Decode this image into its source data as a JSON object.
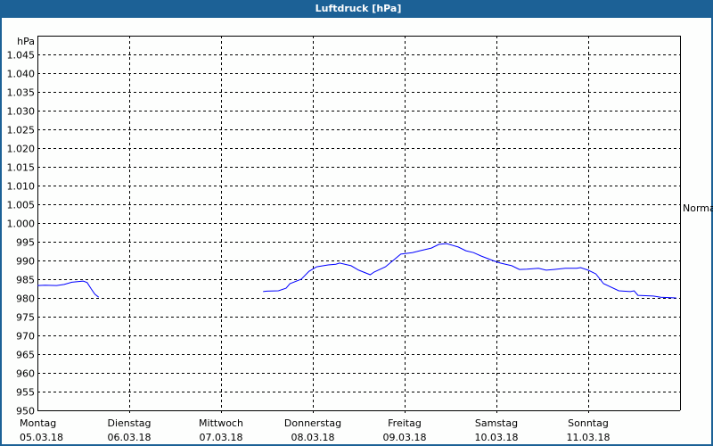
{
  "title": "Luftdruck [hPa]",
  "colors": {
    "titlebar": "#1c6196",
    "line": "#0000ff",
    "grid": "#000000"
  },
  "chart_data": {
    "type": "line",
    "title": "Luftdruck [hPa]",
    "ylabel": "hPa",
    "ylim": [
      950,
      1050
    ],
    "yticks": [
      950,
      955,
      960,
      965,
      970,
      975,
      980,
      985,
      990,
      995,
      1000,
      1005,
      1010,
      1015,
      1020,
      1025,
      1030,
      1035,
      1040,
      1045
    ],
    "ytick_labels": [
      "950",
      "955",
      "960",
      "965",
      "970",
      "975",
      "980",
      "985",
      "990",
      "995",
      "1.000",
      "1.005",
      "1.010",
      "1.015",
      "1.020",
      "1.025",
      "1.030",
      "1.035",
      "1.040",
      "1.045"
    ],
    "xlim": [
      "05.03.18 00:00",
      "12.03.18 00:00"
    ],
    "xticks": [
      {
        "day": "Montag",
        "date": "05.03.18"
      },
      {
        "day": "Dienstag",
        "date": "06.03.18"
      },
      {
        "day": "Mittwoch",
        "date": "07.03.18"
      },
      {
        "day": "Donnerstag",
        "date": "08.03.18"
      },
      {
        "day": "Freitag",
        "date": "09.03.18"
      },
      {
        "day": "Samstag",
        "date": "10.03.18"
      },
      {
        "day": "Sonntag",
        "date": "11.03.18"
      }
    ],
    "grid": true,
    "reference": {
      "label": "Normal",
      "value": 1005
    },
    "series": [
      {
        "points": [
          [
            "05.03.18 00:00",
            983.3
          ],
          [
            "05.03.18 02:00",
            983.4
          ],
          [
            "05.03.18 05:00",
            983.3
          ],
          [
            "05.03.18 07:00",
            983.6
          ],
          [
            "05.03.18 09:00",
            984.2
          ],
          [
            "05.03.18 12:00",
            984.5
          ],
          [
            "05.03.18 13:00",
            984.1
          ],
          [
            "05.03.18 14:00",
            982.5
          ],
          [
            "05.03.18 15:00",
            981.0
          ],
          [
            "05.03.18 16:00",
            980.2
          ]
        ]
      },
      {
        "points": [
          [
            "07.03.18 11:00",
            981.7
          ],
          [
            "07.03.18 12:00",
            981.8
          ],
          [
            "07.03.18 15:00",
            981.9
          ],
          [
            "07.03.18 17:00",
            982.6
          ],
          [
            "07.03.18 18:00",
            983.8
          ],
          [
            "07.03.18 21:00",
            985.0
          ],
          [
            "07.03.18 23:00",
            987.1
          ],
          [
            "08.03.18 01:00",
            988.3
          ],
          [
            "08.03.18 04:00",
            988.8
          ],
          [
            "08.03.18 06:00",
            989.0
          ],
          [
            "08.03.18 07:00",
            989.3
          ],
          [
            "08.03.18 10:00",
            988.6
          ],
          [
            "08.03.18 12:00",
            987.4
          ],
          [
            "08.03.18 15:00",
            986.2
          ],
          [
            "08.03.18 16:00",
            986.9
          ],
          [
            "08.03.18 19:00",
            988.3
          ],
          [
            "08.03.18 21:00",
            990.0
          ],
          [
            "08.03.18 23:00",
            991.7
          ],
          [
            "09.03.18 02:00",
            992.1
          ],
          [
            "09.03.18 04:00",
            992.6
          ],
          [
            "09.03.18 07:00",
            993.3
          ],
          [
            "09.03.18 09:00",
            994.3
          ],
          [
            "09.03.18 11:00",
            994.5
          ],
          [
            "09.03.18 14:00",
            993.6
          ],
          [
            "09.03.18 16:00",
            992.6
          ],
          [
            "09.03.18 18:00",
            992.1
          ],
          [
            "09.03.18 20:00",
            991.2
          ],
          [
            "09.03.18 23:00",
            990.0
          ],
          [
            "10.03.18 01:00",
            989.3
          ],
          [
            "10.03.18 04:00",
            988.6
          ],
          [
            "10.03.18 06:00",
            987.6
          ],
          [
            "10.03.18 08:00",
            987.7
          ],
          [
            "10.03.18 11:00",
            987.9
          ],
          [
            "10.03.18 13:00",
            987.4
          ],
          [
            "10.03.18 15:00",
            987.6
          ],
          [
            "10.03.18 18:00",
            987.9
          ],
          [
            "10.03.18 21:00",
            987.9
          ],
          [
            "10.03.18 22:00",
            988.1
          ],
          [
            "11.03.18 00:00",
            987.4
          ],
          [
            "11.03.18 02:00",
            986.4
          ],
          [
            "11.03.18 04:00",
            983.8
          ],
          [
            "11.03.18 08:00",
            981.9
          ],
          [
            "11.03.18 11:00",
            981.7
          ],
          [
            "11.03.18 12:00",
            981.9
          ],
          [
            "11.03.18 13:00",
            980.7
          ],
          [
            "11.03.18 17:00",
            980.5
          ],
          [
            "11.03.18 19:00",
            980.2
          ],
          [
            "11.03.18 23:00",
            980.0
          ]
        ]
      }
    ]
  }
}
